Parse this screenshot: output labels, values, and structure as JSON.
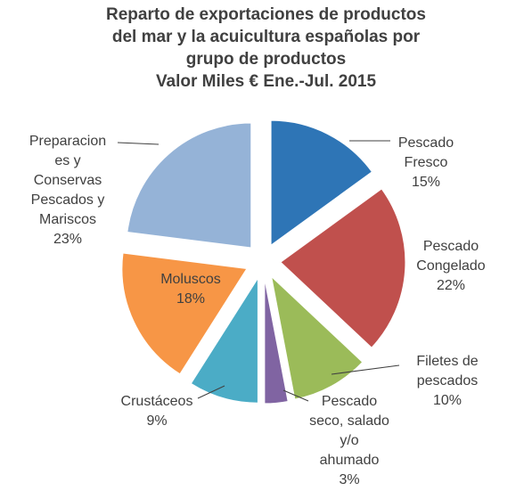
{
  "chart_data": {
    "type": "pie",
    "title_lines": [
      "Reparto de exportaciones de productos",
      "del mar y la acuicultura españolas por",
      "grupo de productos",
      "Valor Miles € Ene.-Jul. 2015"
    ],
    "slices": [
      {
        "label_lines": [
          "Pescado",
          "Fresco"
        ],
        "value": 15,
        "value_label": "15%",
        "color": "#2e75b6"
      },
      {
        "label_lines": [
          "Pescado",
          "Congelado"
        ],
        "value": 22,
        "value_label": "22%",
        "color": "#c0504d"
      },
      {
        "label_lines": [
          "Filetes de",
          "pescados"
        ],
        "value": 10,
        "value_label": "10%",
        "color": "#9bbb59"
      },
      {
        "label_lines": [
          "Pescado",
          "seco, salado",
          "y/o",
          "ahumado"
        ],
        "value": 3,
        "value_label": "3%",
        "color": "#8064a2"
      },
      {
        "label_lines": [
          "Crustáceos"
        ],
        "value": 9,
        "value_label": "9%",
        "color": "#4bacc6"
      },
      {
        "label_lines": [
          "Moluscos"
        ],
        "value": 18,
        "value_label": "18%",
        "color": "#f79646"
      },
      {
        "label_lines": [
          "Preparacion",
          "es y",
          "Conservas",
          "Pescados y",
          "Mariscos"
        ],
        "value": 23,
        "value_label": "23%",
        "color": "#95b3d7"
      }
    ]
  }
}
